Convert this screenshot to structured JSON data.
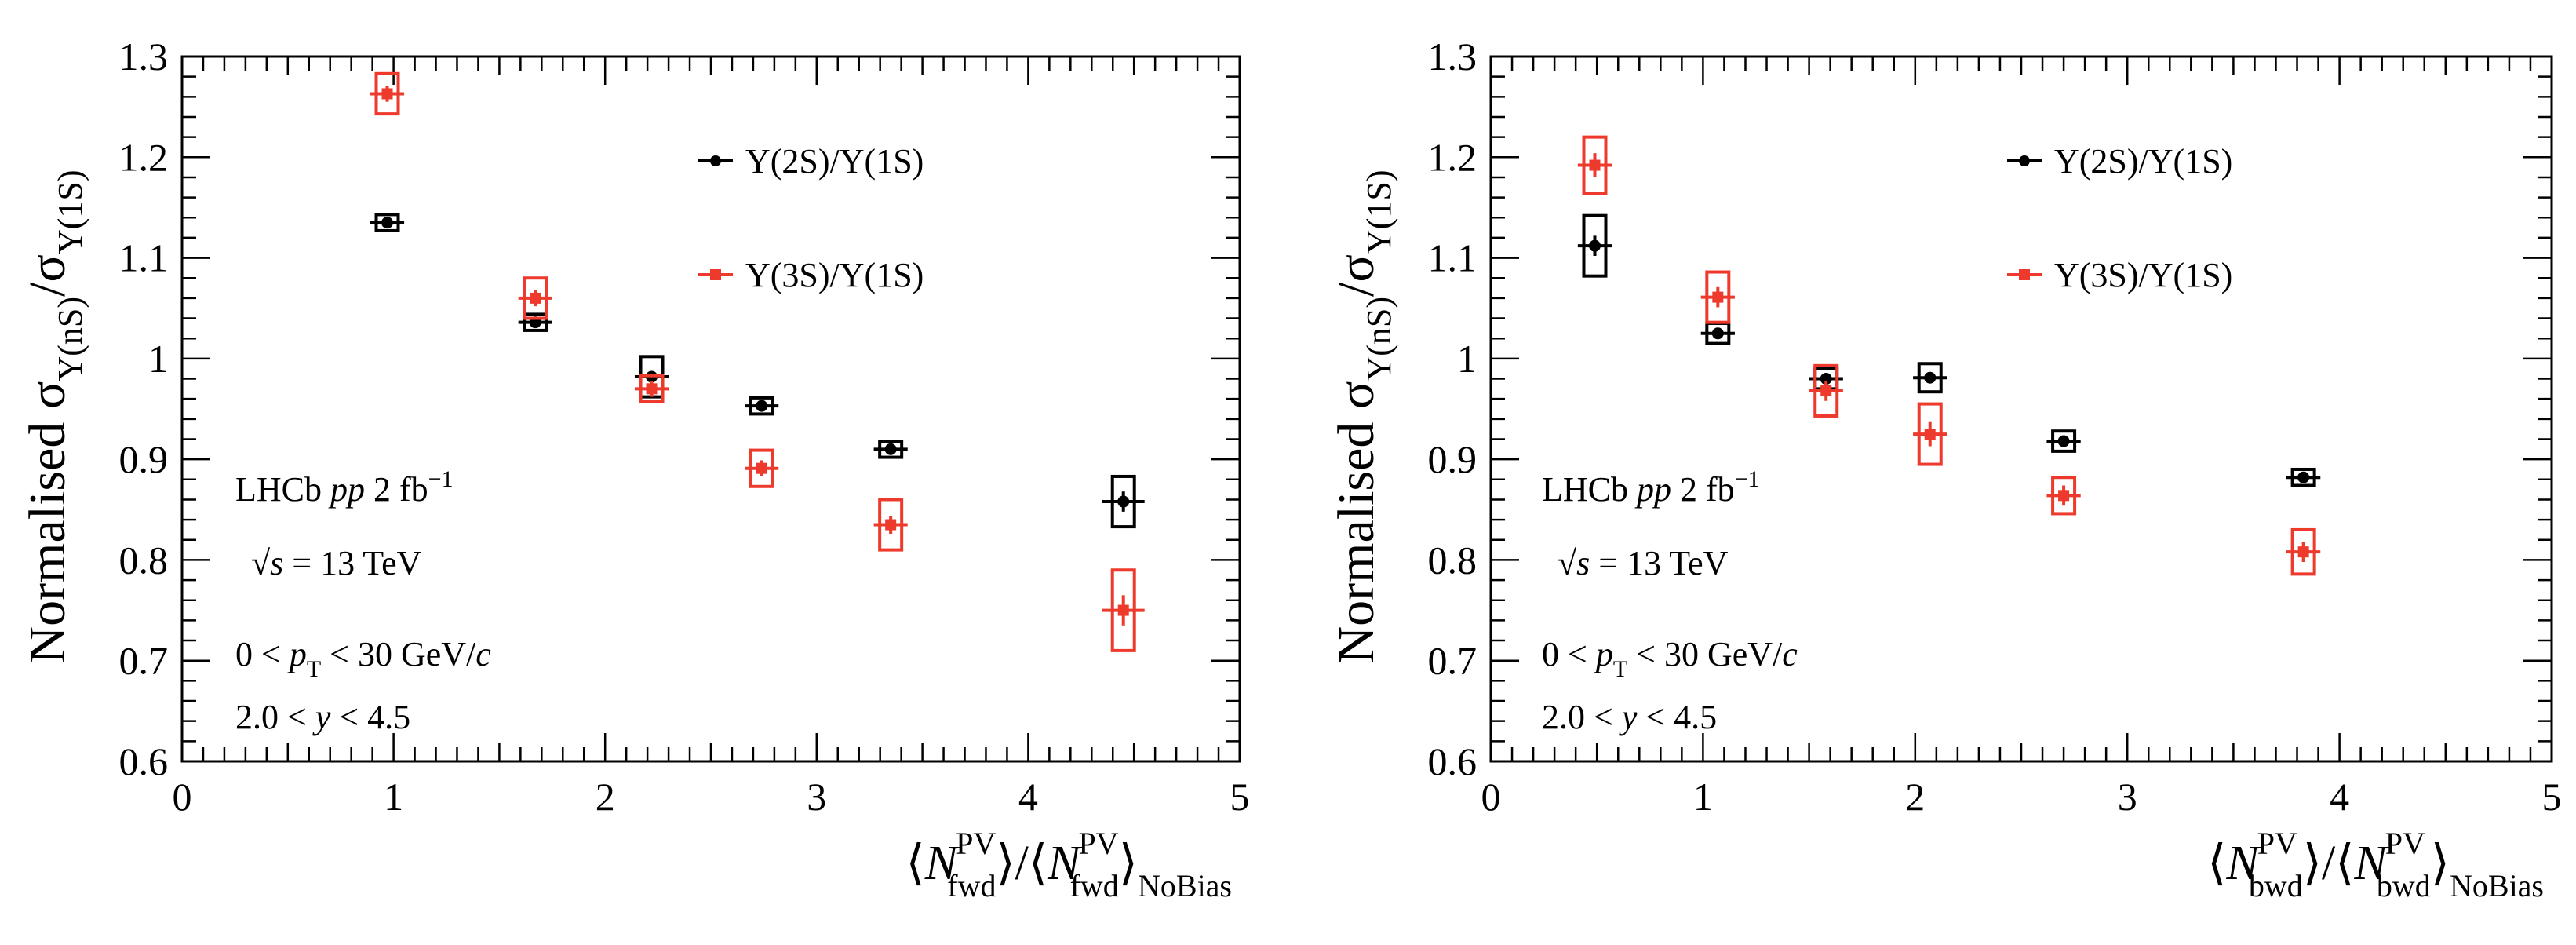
{
  "chart_data": [
    {
      "type": "scatter",
      "title": "",
      "ylabel": "Normalised σ_Υ(nS)/σ_Υ(1S)",
      "ylabel_parts": {
        "main": "Normalised σ",
        "sub1": "Υ(nS)",
        "slash": "/σ",
        "sub2": "Υ(1S)"
      },
      "xlabel": "⟨N^PV_fwd⟩/⟨N^PV_fwd⟩_NoBias",
      "xlabel_parts": {
        "n": "N",
        "sup": "PV",
        "sub": "fwd",
        "tail_sub": "NoBias"
      },
      "xlim": [
        0,
        5
      ],
      "ylim": [
        0.6,
        1.3
      ],
      "xticks": [
        "0",
        "1",
        "2",
        "3",
        "4",
        "5"
      ],
      "yticks": [
        "0.6",
        "0.7",
        "0.8",
        "0.9",
        "1",
        "1.1",
        "1.2",
        "1.3"
      ],
      "annotations": {
        "line1": "LHCb pp 2 fb−1",
        "line2": "√s = 13 TeV",
        "line3": "0 < pT < 30 GeV/c",
        "line4": "2.0 < y < 4.5",
        "parts": {
          "lhcb": "LHCb ",
          "pp": "pp",
          "lumi": " 2 fb",
          "lumi_sup": "−1",
          "sqrt": "√",
          "s": "s",
          "energy": " = 13 TeV",
          "pt_pre": "0 < ",
          "p": "p",
          "T": "T",
          "pt_post": " < 30 GeV/",
          "c": "c",
          "y_pre": "2.0 < ",
          "y": "y",
          "y_post": " < 4.5"
        }
      },
      "series": [
        {
          "name": "Υ(2S)/Υ(1S)",
          "color": "#000000",
          "marker": "circle",
          "x": [
            0.97,
            1.67,
            2.22,
            2.74,
            3.35,
            4.45
          ],
          "y": [
            1.135,
            1.036,
            0.982,
            0.953,
            0.91,
            0.858
          ],
          "xerr": [
            0.08,
            0.08,
            0.08,
            0.08,
            0.08,
            0.1
          ],
          "stat_err": [
            0.004,
            0.004,
            0.004,
            0.004,
            0.005,
            0.01
          ],
          "syst_err": [
            0.008,
            0.007,
            0.02,
            0.007,
            0.007,
            0.025
          ]
        },
        {
          "name": "Υ(3S)/Υ(1S)",
          "color": "#ee3a2c",
          "marker": "square",
          "x": [
            0.97,
            1.67,
            2.22,
            2.74,
            3.35,
            4.45
          ],
          "y": [
            1.263,
            1.06,
            0.97,
            0.891,
            0.835,
            0.75
          ],
          "xerr": [
            0.08,
            0.08,
            0.08,
            0.08,
            0.08,
            0.1
          ],
          "stat_err": [
            0.008,
            0.008,
            0.008,
            0.008,
            0.009,
            0.015
          ],
          "syst_err": [
            0.02,
            0.02,
            0.013,
            0.018,
            0.025,
            0.04
          ]
        }
      ]
    },
    {
      "type": "scatter",
      "title": "",
      "ylabel": "Normalised σ_Υ(nS)/σ_Υ(1S)",
      "ylabel_parts": {
        "main": "Normalised σ",
        "sub1": "Υ(nS)",
        "slash": "/σ",
        "sub2": "Υ(1S)"
      },
      "xlabel": "⟨N^PV_bwd⟩/⟨N^PV_bwd⟩_NoBias",
      "xlabel_parts": {
        "n": "N",
        "sup": "PV",
        "sub": "bwd",
        "tail_sub": "NoBias"
      },
      "xlim": [
        0,
        5
      ],
      "ylim": [
        0.6,
        1.3
      ],
      "xticks": [
        "0",
        "1",
        "2",
        "3",
        "4",
        "5"
      ],
      "yticks": [
        "0.6",
        "0.7",
        "0.8",
        "0.9",
        "1",
        "1.1",
        "1.2",
        "1.3"
      ],
      "annotations": {
        "line1": "LHCb pp 2 fb−1",
        "line2": "√s = 13 TeV",
        "line3": "0 < pT < 30 GeV/c",
        "line4": "2.0 < y < 4.5",
        "parts": {
          "lhcb": "LHCb ",
          "pp": "pp",
          "lumi": " 2 fb",
          "lumi_sup": "−1",
          "sqrt": "√",
          "s": "s",
          "energy": " = 13 TeV",
          "pt_pre": "0 < ",
          "p": "p",
          "T": "T",
          "pt_post": " < 30 GeV/",
          "c": "c",
          "y_pre": "2.0 < ",
          "y": "y",
          "y_post": " < 4.5"
        }
      },
      "series": [
        {
          "name": "Υ(2S)/Υ(1S)",
          "color": "#000000",
          "marker": "circle",
          "x": [
            0.49,
            1.07,
            1.58,
            2.07,
            2.7,
            3.83
          ],
          "y": [
            1.112,
            1.025,
            0.98,
            0.981,
            0.918,
            0.882
          ],
          "xerr": [
            0.08,
            0.08,
            0.08,
            0.08,
            0.08,
            0.08
          ],
          "stat_err": [
            0.01,
            0.005,
            0.005,
            0.005,
            0.005,
            0.004
          ],
          "syst_err": [
            0.03,
            0.01,
            0.01,
            0.014,
            0.01,
            0.007
          ]
        },
        {
          "name": "Υ(3S)/Υ(1S)",
          "color": "#ee3a2c",
          "marker": "square",
          "x": [
            0.49,
            1.07,
            1.58,
            2.07,
            2.7,
            3.83
          ],
          "y": [
            1.192,
            1.061,
            0.968,
            0.925,
            0.864,
            0.808
          ],
          "xerr": [
            0.08,
            0.08,
            0.08,
            0.08,
            0.08,
            0.08
          ],
          "stat_err": [
            0.012,
            0.01,
            0.01,
            0.012,
            0.01,
            0.01
          ],
          "syst_err": [
            0.028,
            0.025,
            0.025,
            0.03,
            0.018,
            0.022
          ]
        }
      ]
    }
  ]
}
